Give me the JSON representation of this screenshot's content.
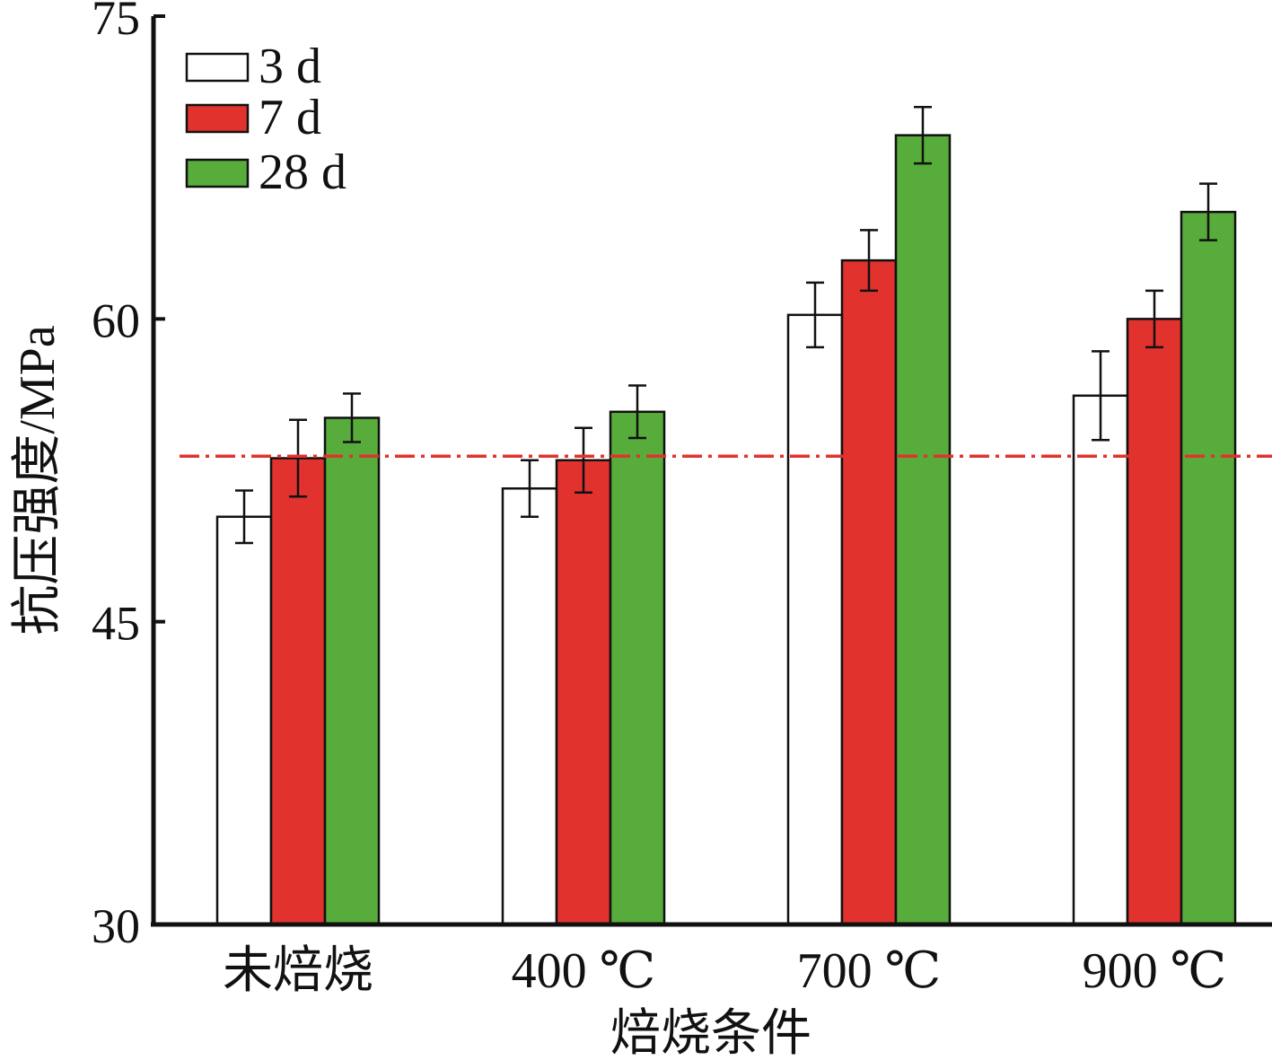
{
  "chart_data": {
    "type": "bar",
    "title": "",
    "xlabel": "焙烧条件",
    "ylabel": "抗压强度/MPa",
    "categories": [
      "未焙烧",
      "400 ℃",
      "700 ℃",
      "900 ℃"
    ],
    "ylim": [
      30,
      75
    ],
    "yticks": [
      30,
      45,
      60,
      75
    ],
    "ytick_labels": [
      "30",
      "45",
      "60",
      "75"
    ],
    "legend_position": "top-left",
    "grid": false,
    "series": [
      {
        "name": "3 d",
        "color": "#ffffff",
        "values": [
          50.2,
          51.6,
          60.2,
          56.2
        ],
        "errors": [
          1.3,
          1.4,
          1.6,
          2.2
        ]
      },
      {
        "name": "7 d",
        "color": "#e2322d",
        "values": [
          53.1,
          53.0,
          62.9,
          60.0
        ],
        "errors": [
          1.9,
          1.6,
          1.5,
          1.4
        ]
      },
      {
        "name": "28 d",
        "color": "#58ac3c",
        "values": [
          55.1,
          55.4,
          69.1,
          65.3
        ],
        "errors": [
          1.2,
          1.3,
          1.4,
          1.4
        ]
      }
    ],
    "reference_line": {
      "value": 53.2,
      "color": "#e2322d",
      "style": "dash-dot"
    }
  }
}
